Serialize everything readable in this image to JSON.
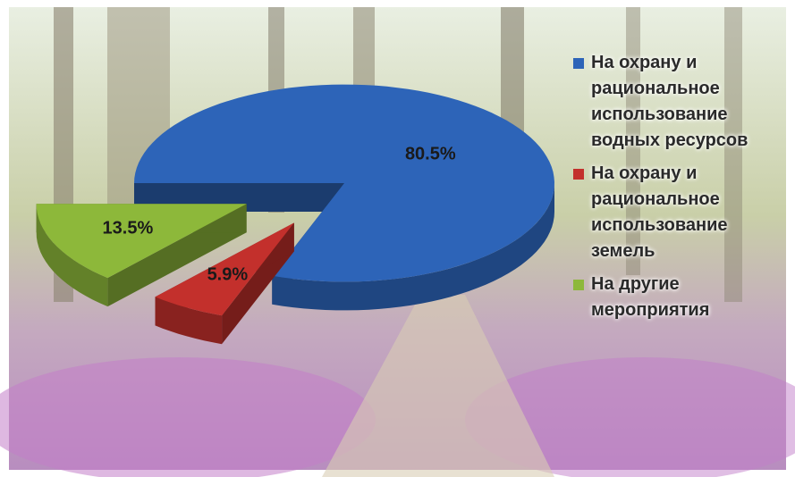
{
  "chart_data": {
    "type": "pie3d",
    "categories": [
      "На охрану и рациональное использование водных ресурсов",
      "На охрану и рациональное использование земель",
      "На другие мероприятия"
    ],
    "values": [
      80.5,
      5.9,
      13.5
    ],
    "value_labels": [
      "80.5%",
      "5.9%",
      "13.5%"
    ],
    "colors": [
      "#2d64b8",
      "#c3302c",
      "#8db83a"
    ],
    "legend": "right"
  }
}
